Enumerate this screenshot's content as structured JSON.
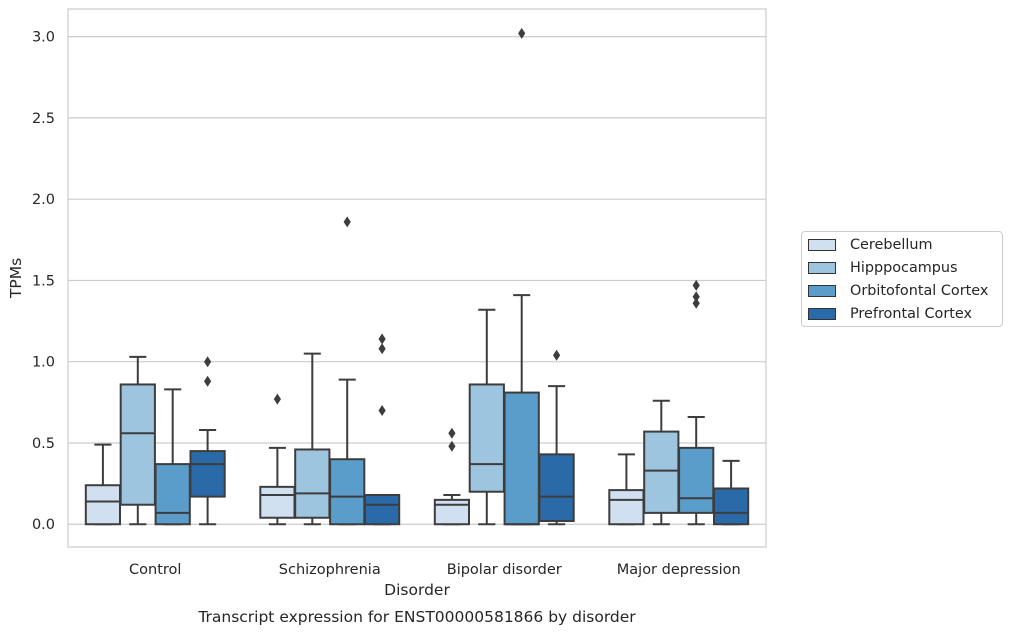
{
  "chart_data": {
    "type": "boxplot",
    "title": "Transcript expression for ENST00000581866 by disorder",
    "xlabel": "Disorder",
    "ylabel": "TPMs",
    "ylim": [
      -0.14,
      3.17
    ],
    "yticks": [
      0.0,
      0.5,
      1.0,
      1.5,
      2.0,
      2.5,
      3.0
    ],
    "ytick_labels": [
      "0.0",
      "0.5",
      "1.0",
      "1.5",
      "2.0",
      "2.5",
      "3.0"
    ],
    "grid": "horizontal",
    "legend_position": "right",
    "categories": [
      "Control",
      "Schizophrenia",
      "Bipolar disorder",
      "Major depression"
    ],
    "series": [
      {
        "name": "Cerebellum",
        "color": "#d0e0f1",
        "boxes": [
          {
            "min": 0.0,
            "q1": 0.0,
            "median": 0.14,
            "q3": 0.24,
            "max": 0.49,
            "outliers": []
          },
          {
            "min": 0.0,
            "q1": 0.04,
            "median": 0.18,
            "q3": 0.23,
            "max": 0.47,
            "outliers": [
              0.77
            ]
          },
          {
            "min": 0.0,
            "q1": 0.0,
            "median": 0.12,
            "q3": 0.15,
            "max": 0.18,
            "outliers": [
              0.48,
              0.56
            ]
          },
          {
            "min": 0.0,
            "q1": 0.0,
            "median": 0.15,
            "q3": 0.21,
            "max": 0.43,
            "outliers": []
          }
        ]
      },
      {
        "name": "Hipppocampus",
        "color": "#9ec5e0",
        "boxes": [
          {
            "min": 0.0,
            "q1": 0.12,
            "median": 0.56,
            "q3": 0.86,
            "max": 1.03,
            "outliers": []
          },
          {
            "min": 0.0,
            "q1": 0.04,
            "median": 0.19,
            "q3": 0.46,
            "max": 1.05,
            "outliers": []
          },
          {
            "min": 0.0,
            "q1": 0.2,
            "median": 0.37,
            "q3": 0.86,
            "max": 1.32,
            "outliers": []
          },
          {
            "min": 0.0,
            "q1": 0.07,
            "median": 0.33,
            "q3": 0.57,
            "max": 0.76,
            "outliers": []
          }
        ]
      },
      {
        "name": "Orbitofontal Cortex",
        "color": "#5b9dca",
        "boxes": [
          {
            "min": 0.0,
            "q1": 0.0,
            "median": 0.07,
            "q3": 0.37,
            "max": 0.83,
            "outliers": []
          },
          {
            "min": 0.0,
            "q1": 0.0,
            "median": 0.17,
            "q3": 0.4,
            "max": 0.89,
            "outliers": [
              1.86
            ]
          },
          {
            "min": 0.0,
            "q1": 0.0,
            "median": 0.0,
            "q3": 0.81,
            "max": 1.41,
            "outliers": [
              3.02
            ]
          },
          {
            "min": 0.0,
            "q1": 0.07,
            "median": 0.16,
            "q3": 0.47,
            "max": 0.66,
            "outliers": [
              1.36,
              1.4,
              1.47
            ]
          }
        ]
      },
      {
        "name": "Prefrontal Cortex",
        "color": "#2a6aa8",
        "boxes": [
          {
            "min": 0.0,
            "q1": 0.17,
            "median": 0.37,
            "q3": 0.45,
            "max": 0.58,
            "outliers": [
              0.88,
              1.0
            ]
          },
          {
            "min": 0.0,
            "q1": 0.0,
            "median": 0.12,
            "q3": 0.18,
            "max": 0.18,
            "outliers": [
              0.7,
              1.08,
              1.14
            ]
          },
          {
            "min": 0.0,
            "q1": 0.02,
            "median": 0.17,
            "q3": 0.43,
            "max": 0.85,
            "outliers": [
              1.04
            ]
          },
          {
            "min": 0.0,
            "q1": 0.0,
            "median": 0.07,
            "q3": 0.22,
            "max": 0.39,
            "outliers": []
          }
        ]
      }
    ]
  }
}
